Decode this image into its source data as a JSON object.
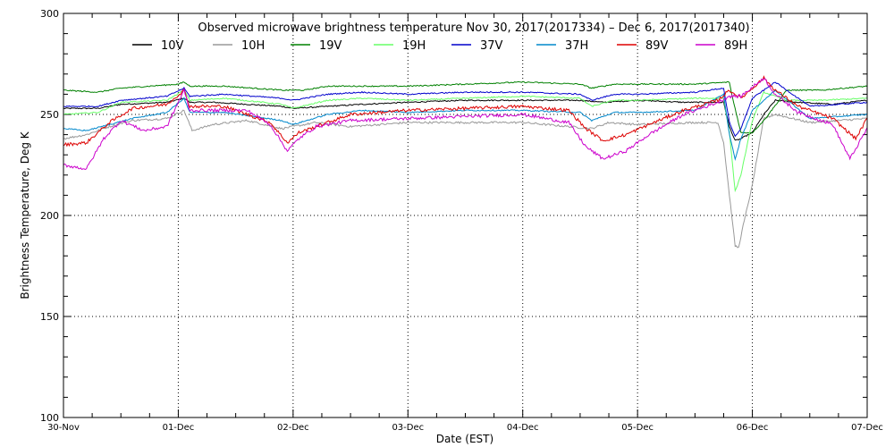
{
  "chart_data": {
    "type": "line",
    "title": "Observed microwave brightness temperature Nov 30, 2017(2017334) – Dec  6, 2017(2017340)",
    "xlabel": "Date (EST)",
    "ylabel": "Brightness Temperature, Deg K",
    "xlim": [
      0,
      7
    ],
    "ylim": [
      100,
      300
    ],
    "x_ticks": [
      0,
      1,
      2,
      3,
      4,
      5,
      6,
      7
    ],
    "x_tick_labels": [
      "30-Nov",
      "01-Dec",
      "02-Dec",
      "03-Dec",
      "04-Dec",
      "05-Dec",
      "06-Dec",
      "07-Dec"
    ],
    "y_ticks": [
      100,
      150,
      200,
      250,
      300
    ],
    "y_tick_labels": [
      "100",
      "150",
      "200",
      "250",
      "300"
    ],
    "grid": "dotted",
    "legend_position": "top",
    "series": [
      {
        "name": "10V",
        "color": "#000000",
        "x": [
          0,
          0.3,
          0.5,
          0.9,
          1.05,
          1.1,
          1.3,
          1.6,
          1.9,
          2.0,
          2.3,
          2.6,
          3.0,
          3.5,
          4.0,
          4.5,
          4.7,
          5.0,
          5.4,
          5.7,
          5.75,
          5.8,
          5.85,
          5.9,
          6.0,
          6.1,
          6.2,
          6.4,
          6.7,
          7.0
        ],
        "values": [
          253,
          253,
          255,
          256,
          258,
          256,
          256,
          255,
          254,
          253,
          254,
          255,
          256,
          257,
          257,
          257,
          256,
          257,
          256,
          256,
          256,
          244,
          237,
          238,
          241,
          250,
          257,
          256,
          255,
          257
        ]
      },
      {
        "name": "10H",
        "color": "#999999",
        "x": [
          0,
          0.2,
          0.4,
          0.6,
          0.9,
          1.05,
          1.12,
          1.3,
          1.6,
          1.9,
          2.0,
          2.2,
          2.5,
          3.0,
          3.5,
          4.0,
          4.4,
          4.6,
          4.75,
          5.0,
          5.5,
          5.7,
          5.75,
          5.8,
          5.85,
          5.88,
          5.92,
          6.0,
          6.1,
          6.2,
          6.5,
          7.0
        ],
        "values": [
          238,
          240,
          244,
          247,
          248,
          252,
          242,
          245,
          247,
          243,
          244,
          246,
          244,
          246,
          246,
          246,
          244,
          243,
          246,
          245,
          246,
          246,
          236,
          210,
          185,
          184,
          195,
          215,
          248,
          250,
          246,
          248
        ]
      },
      {
        "name": "19V",
        "color": "#008000",
        "x": [
          0,
          0.3,
          0.5,
          1.0,
          1.05,
          1.1,
          1.4,
          1.9,
          2.1,
          2.3,
          2.6,
          3.0,
          3.5,
          4.0,
          4.5,
          4.6,
          4.8,
          5.0,
          5.5,
          5.8,
          5.82,
          5.9,
          6.0,
          6.1,
          6.3,
          6.6,
          7.0
        ],
        "values": [
          262,
          261,
          263,
          265,
          266,
          264,
          264,
          262,
          262,
          264,
          264,
          264,
          265,
          266,
          265,
          263,
          265,
          265,
          265,
          266,
          260,
          241,
          241,
          247,
          262,
          262,
          264
        ]
      },
      {
        "name": "19H",
        "color": "#66ff66",
        "x": [
          0,
          0.3,
          0.5,
          0.9,
          1.05,
          1.1,
          1.4,
          1.9,
          2.0,
          2.3,
          2.6,
          3.0,
          3.5,
          4.0,
          4.5,
          4.6,
          4.8,
          5.0,
          5.5,
          5.75,
          5.8,
          5.85,
          5.9,
          6.0,
          6.1,
          6.3,
          6.6,
          7.0
        ],
        "values": [
          250,
          251,
          256,
          257,
          262,
          257,
          258,
          255,
          253,
          257,
          258,
          257,
          258,
          259,
          258,
          254,
          257,
          257,
          258,
          258,
          241,
          212,
          220,
          247,
          261,
          257,
          257,
          258
        ]
      },
      {
        "name": "37V",
        "color": "#0000cc",
        "x": [
          0,
          0.3,
          0.5,
          0.9,
          1.05,
          1.1,
          1.4,
          1.9,
          2.0,
          2.3,
          2.6,
          3.0,
          3.5,
          4.0,
          4.5,
          4.6,
          4.8,
          5.0,
          5.5,
          5.75,
          5.8,
          5.85,
          5.9,
          6.0,
          6.2,
          6.5,
          7.0
        ],
        "values": [
          254,
          254,
          257,
          259,
          263,
          259,
          260,
          258,
          257,
          260,
          261,
          260,
          261,
          261,
          260,
          257,
          260,
          260,
          261,
          263,
          246,
          239,
          243,
          258,
          266,
          254,
          256
        ]
      },
      {
        "name": "37H",
        "color": "#0088cc",
        "x": [
          0,
          0.2,
          0.4,
          0.6,
          0.9,
          1.05,
          1.1,
          1.4,
          1.9,
          2.0,
          2.3,
          2.6,
          3.0,
          3.5,
          4.0,
          4.5,
          4.6,
          4.8,
          5.0,
          5.5,
          5.75,
          5.8,
          5.85,
          5.9,
          6.0,
          6.2,
          6.5,
          7.0
        ],
        "values": [
          243,
          242,
          245,
          248,
          251,
          258,
          251,
          251,
          247,
          245,
          250,
          252,
          251,
          252,
          252,
          251,
          247,
          251,
          251,
          252,
          260,
          240,
          228,
          238,
          252,
          262,
          248,
          250
        ]
      },
      {
        "name": "89V",
        "color": "#dd0000",
        "x": [
          0,
          0.2,
          0.4,
          0.6,
          0.9,
          1.05,
          1.1,
          1.4,
          1.8,
          1.95,
          2.05,
          2.2,
          2.5,
          3.0,
          3.5,
          4.0,
          4.4,
          4.55,
          4.7,
          4.9,
          5.1,
          5.4,
          5.7,
          5.8,
          5.9,
          6.1,
          6.2,
          6.4,
          6.7,
          6.9,
          7.0
        ],
        "values": [
          235,
          236,
          246,
          253,
          255,
          262,
          254,
          254,
          246,
          236,
          241,
          244,
          250,
          252,
          253,
          254,
          252,
          243,
          237,
          240,
          245,
          252,
          257,
          262,
          258,
          268,
          262,
          254,
          248,
          238,
          248
        ]
      },
      {
        "name": "89H",
        "color": "#cc00cc",
        "x": [
          0,
          0.2,
          0.35,
          0.5,
          0.7,
          0.9,
          1.05,
          1.1,
          1.3,
          1.6,
          1.8,
          1.95,
          2.05,
          2.2,
          2.5,
          3.0,
          3.5,
          4.0,
          4.4,
          4.55,
          4.7,
          4.9,
          5.1,
          5.4,
          5.7,
          5.8,
          5.9,
          6.1,
          6.2,
          6.4,
          6.7,
          6.85,
          7.0
        ],
        "values": [
          225,
          223,
          238,
          247,
          242,
          244,
          262,
          252,
          252,
          252,
          245,
          232,
          238,
          244,
          247,
          248,
          249,
          250,
          246,
          234,
          228,
          232,
          240,
          250,
          256,
          259,
          259,
          268,
          260,
          251,
          245,
          228,
          243
        ]
      }
    ]
  }
}
